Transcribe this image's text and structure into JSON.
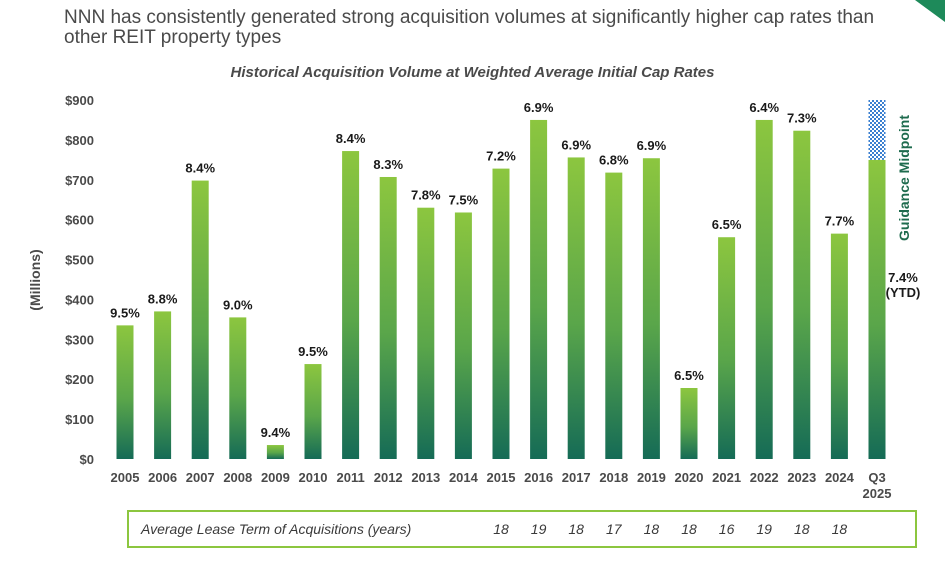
{
  "headline": "NNN has consistently generated strong acquisition volumes at significantly higher cap rates than other REIT property types",
  "colors": {
    "bar_top": "#8cc63f",
    "bar_bottom": "#156b56",
    "guidance_pattern": "#3a7fd0",
    "lease_border": "#8cc63f",
    "corner_accent": "#1e8a5a"
  },
  "chart_data": {
    "type": "bar",
    "title": "Historical Acquisition Volume at Weighted Average Initial Cap Rates",
    "ylabel": "(Millions)",
    "ylim": [
      0,
      900
    ],
    "yticks": [
      "$0",
      "$100",
      "$200",
      "$300",
      "$400",
      "$500",
      "$600",
      "$700",
      "$800",
      "$900"
    ],
    "categories": [
      "2005",
      "2006",
      "2007",
      "2008",
      "2009",
      "2010",
      "2011",
      "2012",
      "2013",
      "2014",
      "2015",
      "2016",
      "2017",
      "2018",
      "2019",
      "2020",
      "2021",
      "2022",
      "2023",
      "2024",
      "Q3\n2025"
    ],
    "values": [
      335,
      370,
      698,
      355,
      35,
      238,
      772,
      707,
      630,
      618,
      728,
      850,
      756,
      718,
      754,
      178,
      556,
      850,
      823,
      565,
      750
    ],
    "cap_rates": [
      "9.5%",
      "8.8%",
      "8.4%",
      "9.0%",
      "9.4%",
      "9.5%",
      "8.4%",
      "8.3%",
      "7.8%",
      "7.5%",
      "7.2%",
      "6.9%",
      "6.9%",
      "6.8%",
      "6.9%",
      "6.5%",
      "6.5%",
      "6.4%",
      "7.3%",
      "7.7%",
      "7.4%\n(YTD)"
    ],
    "guidance_midpoint": {
      "label": "Guidance Midpoint",
      "value": 900
    },
    "lease_term": {
      "label": "Average Lease Term of Acquisitions (years)",
      "values": [
        "",
        "",
        "",
        "",
        "",
        "",
        "",
        "",
        "",
        "",
        "18",
        "19",
        "18",
        "17",
        "18",
        "18",
        "16",
        "19",
        "18",
        "18",
        ""
      ]
    }
  }
}
